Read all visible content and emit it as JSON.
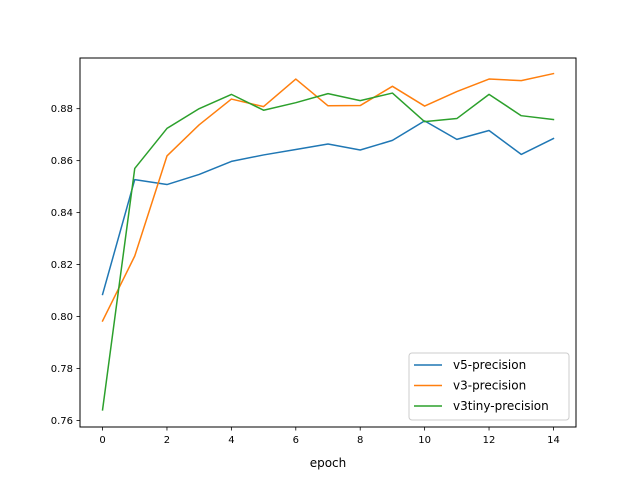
{
  "chart_data": {
    "type": "line",
    "xlabel": "epoch",
    "ylabel": "",
    "xlim": [
      -0.7,
      14.7
    ],
    "ylim": [
      0.7575,
      0.8995
    ],
    "xticks": [
      0,
      2,
      4,
      6,
      8,
      10,
      12,
      14
    ],
    "yticks": [
      0.76,
      0.78,
      0.8,
      0.82,
      0.84,
      0.86,
      0.88
    ],
    "grid": false,
    "legend_position": "lower right",
    "x": [
      0,
      1,
      2,
      3,
      4,
      5,
      6,
      7,
      8,
      9,
      10,
      11,
      12,
      13,
      14
    ],
    "series": [
      {
        "name": "v5-precision",
        "color": "#1f77b4",
        "values": [
          0.8085,
          0.8527,
          0.8508,
          0.8547,
          0.8597,
          0.8622,
          0.8643,
          0.8664,
          0.8641,
          0.8678,
          0.8753,
          0.8682,
          0.8716,
          0.8624,
          0.8685
        ]
      },
      {
        "name": "v3-precision",
        "color": "#ff7f0e",
        "values": [
          0.7983,
          0.8233,
          0.8618,
          0.8738,
          0.8837,
          0.8808,
          0.8914,
          0.8811,
          0.8812,
          0.8886,
          0.881,
          0.8866,
          0.8914,
          0.8908,
          0.8935
        ]
      },
      {
        "name": "v3tiny-precision",
        "color": "#2ca02c",
        "values": [
          0.7641,
          0.857,
          0.8724,
          0.88,
          0.8855,
          0.8794,
          0.8823,
          0.8858,
          0.8831,
          0.886,
          0.875,
          0.8762,
          0.8855,
          0.8773,
          0.8758
        ]
      }
    ]
  }
}
